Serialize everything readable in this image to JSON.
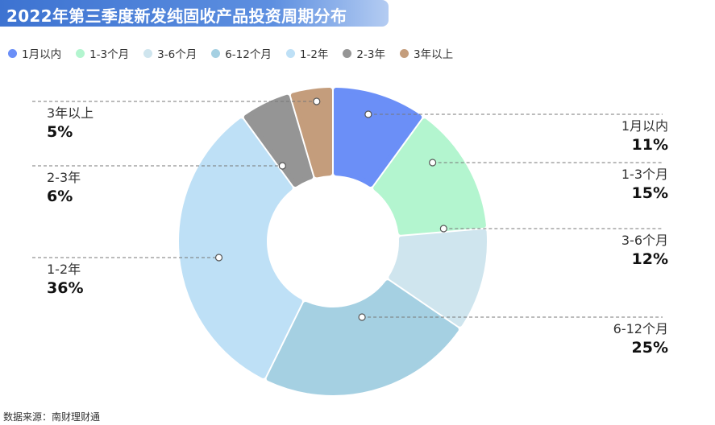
{
  "title": "2022年第三季度新发纯固收产品投资周期分布",
  "source": "数据来源：南财理财通",
  "colors": {
    "title_bg": "#3d73d1",
    "leader_line": "#777777"
  },
  "chart_data": {
    "type": "pie",
    "variant": "donut",
    "title": "2022年第三季度新发纯固收产品投资周期分布",
    "legend_position": "top-left",
    "slices": [
      {
        "label": "1月以内",
        "value": 11,
        "display": "11%",
        "color": "#6b8ff7",
        "side": "right"
      },
      {
        "label": "1-3个月",
        "value": 15,
        "display": "15%",
        "color": "#b3f5cf",
        "side": "right"
      },
      {
        "label": "3-6个月",
        "value": 12,
        "display": "12%",
        "color": "#cfe5ee",
        "side": "right"
      },
      {
        "label": "6-12个月",
        "value": 25,
        "display": "25%",
        "color": "#a5d0e2",
        "side": "right"
      },
      {
        "label": "1-2年",
        "value": 36,
        "display": "36%",
        "color": "#bee0f6",
        "side": "left"
      },
      {
        "label": "2-3年",
        "value": 6,
        "display": "6%",
        "color": "#959595",
        "side": "left"
      },
      {
        "label": "3年以上",
        "value": 5,
        "display": "5%",
        "color": "#c49d7c",
        "side": "left"
      }
    ]
  }
}
